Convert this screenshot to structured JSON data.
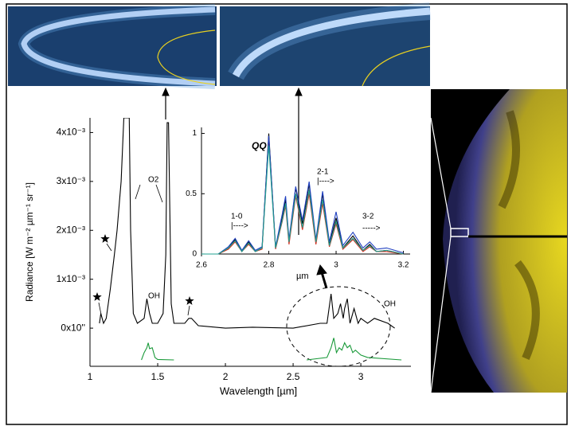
{
  "chart_data": [
    {
      "type": "line",
      "xlabel": "Wavelength [µm]",
      "ylabel": "Radiance [W m⁻² µm⁻¹ sr⁻¹]",
      "xlim": [
        1,
        3.37
      ],
      "ylim": [
        -0.00078,
        0.0043
      ],
      "xticks": [
        1,
        1.5,
        2,
        2.5,
        3
      ],
      "yticks": [
        {
          "value": 0,
          "label": "0x10''"
        },
        {
          "value": 0.001,
          "label": "1x10⁻³"
        },
        {
          "value": 0.002,
          "label": "2x10⁻³"
        },
        {
          "value": 0.003,
          "label": "3x10⁻³"
        },
        {
          "value": 0.004,
          "label": "4x10⁻³"
        }
      ],
      "annotations": [
        "O2",
        "OH",
        "OH"
      ],
      "series": [
        {
          "color": "#000000",
          "x": [
            1.07,
            1.08,
            1.1,
            1.12,
            1.15,
            1.18,
            1.2,
            1.23,
            1.25,
            1.27,
            1.29,
            1.3,
            1.32,
            1.35,
            1.4,
            1.42,
            1.44,
            1.46,
            1.5,
            1.54,
            1.56,
            1.57,
            1.58,
            1.6,
            1.62,
            1.7,
            1.73,
            1.75,
            1.8,
            2,
            2.2,
            2.5,
            2.7,
            2.75,
            2.78,
            2.8,
            2.83,
            2.85,
            2.87,
            2.88,
            2.9,
            2.92,
            2.95,
            2.98,
            3.0,
            3.05,
            3.1,
            3.2,
            3.25
          ],
          "values": [
            0.0001,
            0.0003,
            0.0001,
            0.0002,
            0.0008,
            0.0015,
            0.002,
            0.003,
            0.0043,
            0.0043,
            0.0043,
            0.002,
            0.0003,
            0.0001,
            0.0002,
            0.0006,
            0.0003,
            0.0001,
            0.0001,
            0.0003,
            0.0015,
            0.0042,
            0.0042,
            0.0005,
            0.0001,
            0.0001,
            0.0002,
            0.0002,
            5e-05,
            0,
            2e-05,
            0,
            0.0001,
            0.0001,
            0.0007,
            0.0002,
            0.0003,
            0.0005,
            0.0002,
            0.0004,
            0.0006,
            0.0001,
            0.0004,
            0.0001,
            0.0002,
            0.0001,
            0.0002,
            0.0001,
            0
          ]
        },
        {
          "color": "#1a9a3a",
          "x": [
            1.38,
            1.4,
            1.42,
            1.43,
            1.44,
            1.46,
            1.48,
            1.5,
            1.62,
            null,
            2.6,
            2.75,
            2.78,
            2.8,
            2.82,
            2.84,
            2.86,
            2.88,
            2.9,
            2.92,
            2.94,
            2.96,
            3.0,
            3.05,
            3.3
          ],
          "values": [
            -0.00065,
            -0.0005,
            -0.0004,
            -0.0003,
            -0.00042,
            -0.0004,
            -0.0006,
            -0.00064,
            -0.00065,
            null,
            -0.00065,
            -0.0006,
            -0.0004,
            -0.0002,
            -0.0005,
            -0.0004,
            -0.00045,
            -0.0003,
            -0.0004,
            -0.00035,
            -0.0005,
            -0.00045,
            -0.00055,
            -0.0006,
            -0.00065
          ]
        }
      ]
    },
    {
      "type": "line",
      "xlabel": "µm",
      "xlim": [
        2.6,
        3.22
      ],
      "ylim": [
        -0.02,
        1.05
      ],
      "xticks": [
        2.6,
        2.8,
        3,
        3.2
      ],
      "yticks": [
        0,
        0.5,
        1
      ],
      "annotations": [
        "QQ",
        "1-0",
        "|---->",
        "2-1",
        "|---->",
        "3-2",
        "----->"
      ],
      "series": [
        {
          "color": "#000000",
          "x": [
            2.6,
            2.65,
            2.68,
            2.7,
            2.72,
            2.74,
            2.76,
            2.78,
            2.8,
            2.82,
            2.84,
            2.85,
            2.86,
            2.88,
            2.9,
            2.92,
            2.94,
            2.96,
            2.98,
            3.0,
            3.02,
            3.05,
            3.08,
            3.1,
            3.12,
            3.15,
            3.2
          ],
          "values": [
            0,
            0,
            0.05,
            0.12,
            0.02,
            0.1,
            0.02,
            0.05,
            1.0,
            0.05,
            0.3,
            0.45,
            0.1,
            0.55,
            0.25,
            0.58,
            0.1,
            0.5,
            0.08,
            0.3,
            0.05,
            0.15,
            0.03,
            0.08,
            0.02,
            0.03,
            0
          ]
        },
        {
          "color": "#d03020",
          "x": [
            2.6,
            2.65,
            2.68,
            2.7,
            2.72,
            2.74,
            2.76,
            2.78,
            2.8,
            2.82,
            2.84,
            2.85,
            2.86,
            2.88,
            2.9,
            2.92,
            2.94,
            2.96,
            2.98,
            3.0,
            3.02,
            3.05,
            3.08,
            3.1,
            3.12,
            3.15,
            3.2
          ],
          "values": [
            0,
            0,
            0.04,
            0.1,
            0.02,
            0.08,
            0.02,
            0.04,
            0.95,
            0.04,
            0.27,
            0.4,
            0.08,
            0.48,
            0.2,
            0.5,
            0.08,
            0.42,
            0.06,
            0.25,
            0.04,
            0.12,
            0.02,
            0.06,
            0.02,
            0.02,
            0
          ]
        },
        {
          "color": "#2040c0",
          "x": [
            2.6,
            2.65,
            2.68,
            2.7,
            2.72,
            2.74,
            2.76,
            2.78,
            2.8,
            2.82,
            2.84,
            2.85,
            2.86,
            2.88,
            2.9,
            2.92,
            2.94,
            2.96,
            2.98,
            3.0,
            3.02,
            3.05,
            3.08,
            3.1,
            3.12,
            3.15,
            3.2
          ],
          "values": [
            0,
            0,
            0.06,
            0.13,
            0.03,
            0.11,
            0.03,
            0.06,
            0.98,
            0.06,
            0.33,
            0.48,
            0.12,
            0.56,
            0.28,
            0.6,
            0.12,
            0.52,
            0.1,
            0.35,
            0.07,
            0.18,
            0.05,
            0.1,
            0.04,
            0.05,
            0.01
          ]
        },
        {
          "color": "#20a090",
          "x": [
            2.6,
            2.65,
            2.68,
            2.7,
            2.72,
            2.74,
            2.76,
            2.78,
            2.8,
            2.82,
            2.84,
            2.85,
            2.86,
            2.88,
            2.9,
            2.92,
            2.94,
            2.96,
            2.98,
            3.0,
            3.02,
            3.05,
            3.08,
            3.1,
            3.12,
            3.15,
            3.2
          ],
          "values": [
            0,
            0,
            0.05,
            0.11,
            0.02,
            0.09,
            0.02,
            0.05,
            0.9,
            0.05,
            0.28,
            0.42,
            0.1,
            0.5,
            0.22,
            0.53,
            0.1,
            0.45,
            0.07,
            0.27,
            0.05,
            0.13,
            0.03,
            0.07,
            0.02,
            0.03,
            0
          ]
        }
      ]
    }
  ]
}
